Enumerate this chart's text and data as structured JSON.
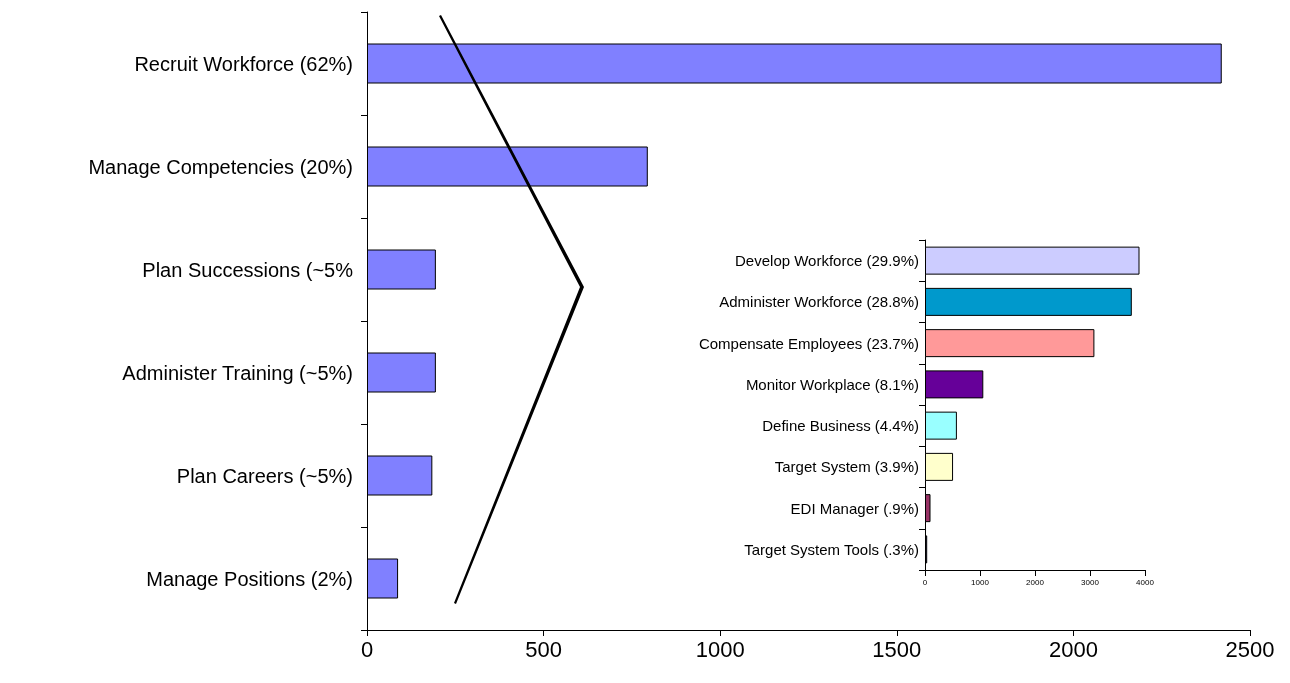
{
  "chart_data": [
    {
      "type": "bar",
      "orientation": "horizontal",
      "categories": [
        "Recruit Workforce (62%)",
        "Manage Competencies (20%)",
        "Plan Successions (~5%",
        "Administer Training (~5%)",
        "Plan Careers (~5%)",
        "Manage Positions (2%)"
      ],
      "values": [
        2420,
        795,
        195,
        195,
        185,
        88
      ],
      "color": "#8080ff",
      "xlim": [
        0,
        2500
      ],
      "xticks": [
        0,
        500,
        1000,
        1500,
        2000,
        2500
      ],
      "grid": false
    },
    {
      "type": "bar",
      "orientation": "horizontal",
      "categories": [
        "Develop Workforce (29.9%)",
        "Administer Workforce (28.8%)",
        "Compensate Employees (23.7%)",
        "Monitor Workplace (8.1%)",
        "Define Business (4.4%)",
        "Target System (3.9%)",
        "EDI Manager (.9%)",
        "Target System Tools (.3%)"
      ],
      "values": [
        3900,
        3760,
        3080,
        1060,
        580,
        510,
        100,
        40
      ],
      "colors": [
        "#ccccff",
        "#0099cc",
        "#ff9999",
        "#660099",
        "#99ffff",
        "#ffffcc",
        "#993366",
        "#333366"
      ],
      "xlim": [
        0,
        4000
      ],
      "xticks": [
        0,
        1000,
        2000,
        3000,
        4000
      ],
      "grid": false
    }
  ]
}
